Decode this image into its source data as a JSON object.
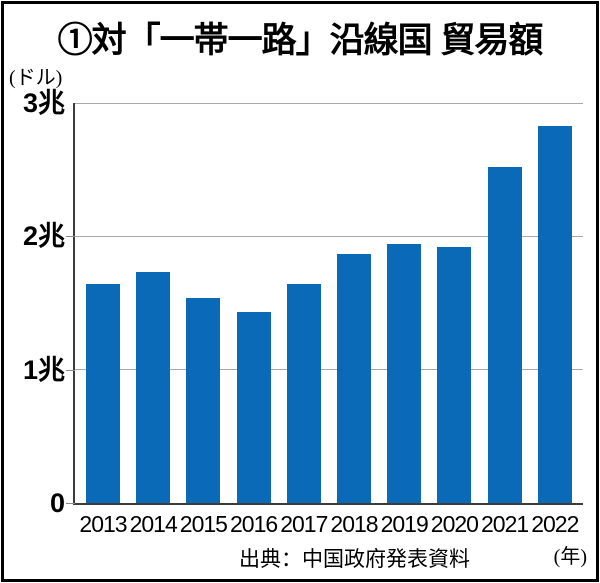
{
  "figure": {
    "title": "①対「一帯一路」沿線国 貿易額",
    "unit_label": "(ドル)",
    "source": "出典：中国政府発表資料",
    "year_unit_label": "(年)"
  },
  "chart_data": {
    "type": "bar",
    "title": "①対「一帯一路」沿線国 貿易額",
    "categories": [
      "2013",
      "2014",
      "2015",
      "2016",
      "2017",
      "2018",
      "2019",
      "2020",
      "2021",
      "2022"
    ],
    "values": [
      1.64,
      1.73,
      1.54,
      1.43,
      1.64,
      1.87,
      1.94,
      1.92,
      2.52,
      2.83
    ],
    "unit": "兆ドル",
    "xlabel": "年",
    "ylabel": "ドル",
    "ylim": [
      0,
      3
    ],
    "yticks": [
      {
        "value": 3,
        "label": "3兆"
      },
      {
        "value": 2,
        "label": "2兆"
      },
      {
        "value": 1,
        "label": "1兆"
      },
      {
        "value": 0,
        "label": "0"
      }
    ],
    "grid": true,
    "legend": "none",
    "bar_color": "#0a6ab8",
    "source": "出典：中国政府発表資料"
  }
}
